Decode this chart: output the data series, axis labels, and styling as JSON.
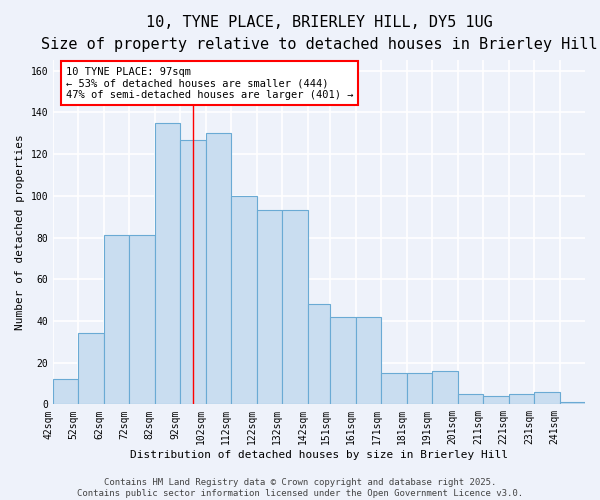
{
  "title_line1": "10, TYNE PLACE, BRIERLEY HILL, DY5 1UG",
  "title_line2": "Size of property relative to detached houses in Brierley Hill",
  "xlabel": "Distribution of detached houses by size in Brierley Hill",
  "ylabel": "Number of detached properties",
  "bar_color": "#c9ddf0",
  "bar_edge_color": "#6aaad4",
  "bin_edges": [
    42,
    52,
    62,
    72,
    82,
    92,
    102,
    112,
    122,
    132,
    142,
    151,
    161,
    171,
    181,
    191,
    201,
    211,
    221,
    231,
    241,
    251
  ],
  "bin_labels": [
    "42sqm",
    "52sqm",
    "62sqm",
    "72sqm",
    "82sqm",
    "92sqm",
    "102sqm",
    "112sqm",
    "122sqm",
    "132sqm",
    "142sqm",
    "151sqm",
    "161sqm",
    "171sqm",
    "181sqm",
    "191sqm",
    "201sqm",
    "211sqm",
    "221sqm",
    "231sqm",
    "241sqm"
  ],
  "values": [
    12,
    34,
    81,
    81,
    135,
    127,
    130,
    100,
    93,
    93,
    48,
    42,
    42,
    15,
    15,
    16,
    5,
    4,
    5,
    6,
    1
  ],
  "red_line_x": 97,
  "annotation_text": "10 TYNE PLACE: 97sqm\n← 53% of detached houses are smaller (444)\n47% of semi-detached houses are larger (401) →",
  "annotation_box_color": "white",
  "annotation_box_edge_color": "red",
  "ylim": [
    0,
    165
  ],
  "yticks": [
    0,
    20,
    40,
    60,
    80,
    100,
    120,
    140,
    160
  ],
  "footer_line1": "Contains HM Land Registry data © Crown copyright and database right 2025.",
  "footer_line2": "Contains public sector information licensed under the Open Government Licence v3.0.",
  "background_color": "#eef2fa",
  "grid_color": "white",
  "title_fontsize": 11,
  "subtitle_fontsize": 9.5,
  "axis_label_fontsize": 8,
  "tick_fontsize": 7,
  "annotation_fontsize": 7.5,
  "footer_fontsize": 6.5
}
